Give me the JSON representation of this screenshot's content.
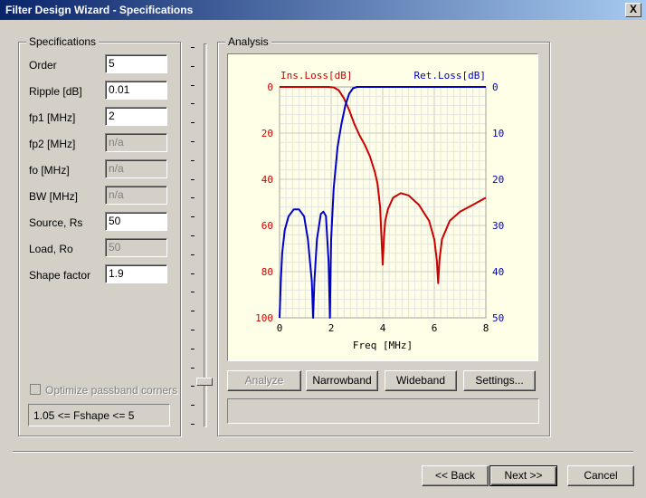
{
  "window": {
    "title": "Filter Design Wizard - Specifications",
    "close_label": "X"
  },
  "specs": {
    "group_title": "Specifications",
    "fields": [
      {
        "label": "Order",
        "value": "5",
        "enabled": true
      },
      {
        "label": "Ripple [dB]",
        "value": "0.01",
        "enabled": true
      },
      {
        "label": "fp1 [MHz]",
        "value": "2",
        "enabled": true
      },
      {
        "label": "fp2 [MHz]",
        "value": "n/a",
        "enabled": false
      },
      {
        "label": "fo [MHz]",
        "value": "n/a",
        "enabled": false
      },
      {
        "label": "BW [MHz]",
        "value": "n/a",
        "enabled": false
      },
      {
        "label": "Source, Rs",
        "value": "50",
        "enabled": true
      },
      {
        "label": "Load, Ro",
        "value": "50",
        "enabled": false
      },
      {
        "label": "Shape factor",
        "value": "1.9",
        "enabled": true
      }
    ],
    "optimize_label": "Optimize passband corners",
    "shape_range": "1.05 <= Fshape <= 5"
  },
  "analysis": {
    "group_title": "Analysis",
    "buttons": {
      "analyze": "Analyze",
      "narrowband": "Narrowband",
      "wideband": "Wideband",
      "settings": "Settings..."
    }
  },
  "nav": {
    "back": "<< Back",
    "next": "Next >>",
    "cancel": "Cancel"
  },
  "chart_data": {
    "type": "line",
    "xlabel": "Freq [MHz]",
    "ylabel_left": "Ins.Loss[dB]",
    "ylabel_right": "Ret.Loss[dB]",
    "xlim": [
      0,
      8
    ],
    "ylim_left": [
      0,
      100
    ],
    "ylim_right": [
      0,
      50
    ],
    "x_ticks": [
      "0",
      "2",
      "4",
      "6",
      "8"
    ],
    "y_left_ticks": [
      "0",
      "20",
      "40",
      "60",
      "80",
      "100"
    ],
    "y_right_ticks": [
      "0",
      "10",
      "20",
      "30",
      "40",
      "50"
    ],
    "inverted_y": true,
    "grid": true,
    "colors": {
      "ins": "#cc0000",
      "ret": "#0000cc"
    },
    "series": [
      {
        "name": "Ins.Loss[dB]",
        "axis": "left",
        "color": "#cc0000",
        "x": [
          0,
          0.5,
          1,
          1.5,
          1.9,
          2.1,
          2.3,
          2.5,
          2.7,
          2.9,
          3.1,
          3.3,
          3.5,
          3.7,
          3.8,
          3.9,
          3.95,
          4.0,
          4.05,
          4.1,
          4.2,
          4.4,
          4.7,
          5.0,
          5.4,
          5.8,
          6.0,
          6.1,
          6.15,
          6.2,
          6.3,
          6.6,
          7.0,
          7.5,
          8.0
        ],
        "y": [
          0,
          0,
          0,
          0,
          0,
          0.2,
          1.5,
          5,
          10,
          16,
          21,
          25,
          30,
          37,
          42,
          52,
          65,
          77,
          65,
          58,
          53,
          48,
          46,
          47,
          51,
          58,
          66,
          75,
          85,
          75,
          66,
          58,
          54,
          51,
          48
        ]
      },
      {
        "name": "Ret.Loss[dB]",
        "axis": "right",
        "color": "#0000cc",
        "x": [
          0,
          0.05,
          0.1,
          0.2,
          0.35,
          0.55,
          0.75,
          0.95,
          1.1,
          1.25,
          1.3,
          1.35,
          1.45,
          1.6,
          1.7,
          1.8,
          1.9,
          1.95,
          2.0,
          2.1,
          2.25,
          2.4,
          2.55,
          2.7,
          2.85,
          3.0,
          4.0,
          5.0,
          6.0,
          7.0,
          8.0
        ],
        "y": [
          50,
          42,
          36,
          31,
          28,
          26.5,
          26.5,
          28,
          33,
          42,
          50,
          42,
          33,
          27.5,
          27,
          28,
          38,
          50,
          33,
          22,
          13,
          8,
          4,
          1.5,
          0.3,
          0,
          0,
          0,
          0,
          0,
          0
        ]
      }
    ]
  }
}
